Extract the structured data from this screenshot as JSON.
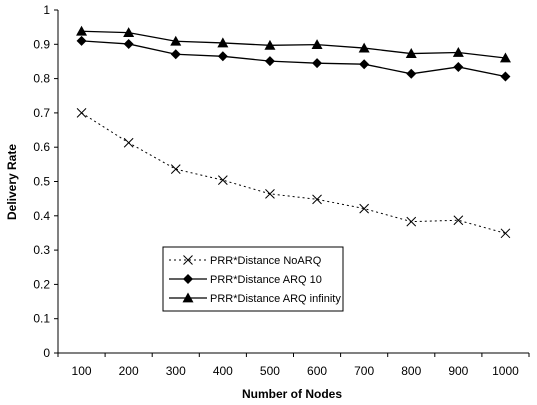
{
  "chart_data": {
    "type": "line",
    "title": "",
    "xlabel": "Number of Nodes",
    "ylabel": "Delivery Rate",
    "categories": [
      "100",
      "200",
      "300",
      "400",
      "500",
      "600",
      "700",
      "800",
      "900",
      "1000"
    ],
    "ylim": [
      0,
      1
    ],
    "yticks": [
      "0",
      "0.1",
      "0.2",
      "0.3",
      "0.4",
      "0.5",
      "0.6",
      "0.7",
      "0.8",
      "0.9",
      "1"
    ],
    "grid": false,
    "legend_position": "bottom-left",
    "series": [
      {
        "name": "PRR*Distance NoARQ",
        "marker": "x",
        "line": "dotted",
        "color": "#000000",
        "values": [
          0.7,
          0.613,
          0.536,
          0.504,
          0.464,
          0.448,
          0.421,
          0.383,
          0.387,
          0.349
        ]
      },
      {
        "name": "PRR*Distance ARQ 10",
        "marker": "diamond",
        "line": "solid",
        "color": "#000000",
        "values": [
          0.91,
          0.901,
          0.871,
          0.865,
          0.851,
          0.845,
          0.842,
          0.814,
          0.834,
          0.806
        ]
      },
      {
        "name": "PRR*Distance ARQ infinity",
        "marker": "triangle",
        "line": "solid",
        "color": "#000000",
        "values": [
          0.938,
          0.934,
          0.909,
          0.904,
          0.897,
          0.899,
          0.889,
          0.873,
          0.876,
          0.86
        ]
      }
    ]
  }
}
